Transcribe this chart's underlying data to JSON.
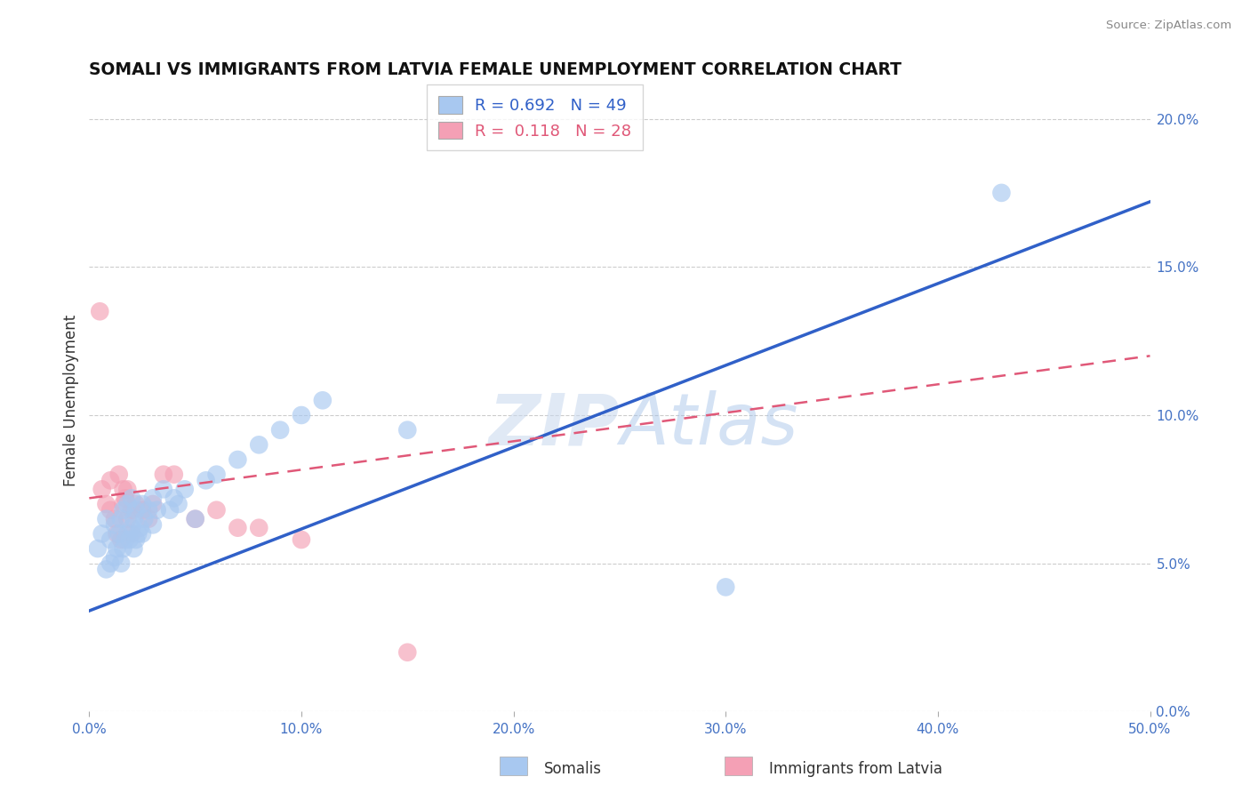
{
  "title": "SOMALI VS IMMIGRANTS FROM LATVIA FEMALE UNEMPLOYMENT CORRELATION CHART",
  "source": "Source: ZipAtlas.com",
  "ylabel": "Female Unemployment",
  "xlim": [
    0,
    0.5
  ],
  "ylim": [
    0,
    0.21
  ],
  "xticks": [
    0.0,
    0.1,
    0.2,
    0.3,
    0.4,
    0.5
  ],
  "xticklabels": [
    "0.0%",
    "10.0%",
    "20.0%",
    "30.0%",
    "40.0%",
    "50.0%"
  ],
  "yticks": [
    0.0,
    0.05,
    0.1,
    0.15,
    0.2
  ],
  "yticklabels": [
    "0.0%",
    "5.0%",
    "10.0%",
    "15.0%",
    "20.0%"
  ],
  "somali_R": 0.692,
  "somali_N": 49,
  "latvia_R": 0.118,
  "latvia_N": 28,
  "somali_color": "#a8c8f0",
  "latvia_color": "#f4a0b5",
  "somali_line_color": "#3060c8",
  "latvia_line_color": "#e05878",
  "background_color": "#ffffff",
  "watermark": "ZIPAtlas",
  "watermark_color_r": 185,
  "watermark_color_g": 210,
  "watermark_color_b": 240,
  "legend_label_somali": "Somalis",
  "legend_label_latvia": "Immigrants from Latvia",
  "somali_x": [
    0.004,
    0.006,
    0.008,
    0.008,
    0.01,
    0.01,
    0.012,
    0.012,
    0.013,
    0.014,
    0.015,
    0.015,
    0.016,
    0.016,
    0.017,
    0.018,
    0.018,
    0.019,
    0.02,
    0.02,
    0.021,
    0.021,
    0.022,
    0.022,
    0.023,
    0.024,
    0.025,
    0.025,
    0.026,
    0.028,
    0.03,
    0.03,
    0.032,
    0.035,
    0.038,
    0.04,
    0.042,
    0.045,
    0.05,
    0.055,
    0.06,
    0.07,
    0.08,
    0.09,
    0.1,
    0.11,
    0.15,
    0.3,
    0.43
  ],
  "somali_y": [
    0.055,
    0.06,
    0.048,
    0.065,
    0.05,
    0.058,
    0.052,
    0.063,
    0.055,
    0.06,
    0.05,
    0.065,
    0.055,
    0.068,
    0.058,
    0.06,
    0.07,
    0.058,
    0.062,
    0.072,
    0.055,
    0.065,
    0.058,
    0.068,
    0.06,
    0.062,
    0.06,
    0.07,
    0.065,
    0.068,
    0.063,
    0.072,
    0.068,
    0.075,
    0.068,
    0.072,
    0.07,
    0.075,
    0.065,
    0.078,
    0.08,
    0.085,
    0.09,
    0.095,
    0.1,
    0.105,
    0.095,
    0.042,
    0.175
  ],
  "latvia_x": [
    0.005,
    0.006,
    0.008,
    0.01,
    0.01,
    0.012,
    0.013,
    0.014,
    0.015,
    0.016,
    0.016,
    0.017,
    0.018,
    0.018,
    0.02,
    0.02,
    0.022,
    0.025,
    0.028,
    0.03,
    0.035,
    0.04,
    0.05,
    0.06,
    0.07,
    0.08,
    0.1,
    0.15
  ],
  "latvia_y": [
    0.135,
    0.075,
    0.07,
    0.068,
    0.078,
    0.065,
    0.06,
    0.08,
    0.058,
    0.07,
    0.075,
    0.072,
    0.065,
    0.075,
    0.06,
    0.068,
    0.07,
    0.068,
    0.065,
    0.07,
    0.08,
    0.08,
    0.065,
    0.068,
    0.062,
    0.062,
    0.058,
    0.02
  ],
  "blue_line_x0": 0.0,
  "blue_line_y0": 0.034,
  "blue_line_x1": 0.5,
  "blue_line_y1": 0.172,
  "pink_line_x0": 0.0,
  "pink_line_y0": 0.072,
  "pink_line_x1": 0.5,
  "pink_line_y1": 0.12
}
